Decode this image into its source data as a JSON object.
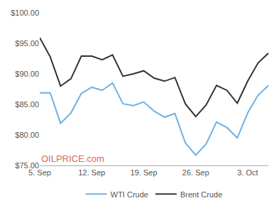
{
  "chart_data": {
    "type": "line",
    "categories": [
      "5. Sep",
      null,
      null,
      null,
      null,
      "12. Sep",
      null,
      null,
      null,
      null,
      "19. Sep",
      null,
      null,
      null,
      null,
      "26. Sep",
      null,
      null,
      null,
      null,
      "3. Oct",
      null,
      null
    ],
    "series": [
      {
        "name": "WTI Crude",
        "color": "#6fb1e3",
        "values": [
          86.9,
          86.9,
          81.9,
          83.6,
          86.8,
          87.8,
          87.3,
          88.5,
          85.1,
          84.8,
          85.4,
          83.9,
          82.9,
          83.5,
          78.7,
          76.7,
          78.5,
          82.1,
          81.2,
          79.5,
          83.6,
          86.5,
          88.1
        ]
      },
      {
        "name": "Brent Crude",
        "color": "#333333",
        "values": [
          95.9,
          92.8,
          88.0,
          89.2,
          92.9,
          92.9,
          92.3,
          93.1,
          89.6,
          90.0,
          90.5,
          89.3,
          88.8,
          89.4,
          85.1,
          83.0,
          84.9,
          88.1,
          87.3,
          85.2,
          88.8,
          91.8,
          93.4
        ]
      }
    ],
    "ylim": [
      75,
      100
    ],
    "yticks": [
      {
        "value": 75,
        "label": "$75.00"
      },
      {
        "value": 80,
        "label": "$80.00"
      },
      {
        "value": 85,
        "label": "$85.00"
      },
      {
        "value": 90,
        "label": "$90.00"
      },
      {
        "value": 95,
        "label": "$95.00"
      },
      {
        "value": 100,
        "label": "$100.00"
      }
    ],
    "grid": false,
    "legend": "bottom",
    "annotations": [
      "OILPRICE.com"
    ]
  }
}
